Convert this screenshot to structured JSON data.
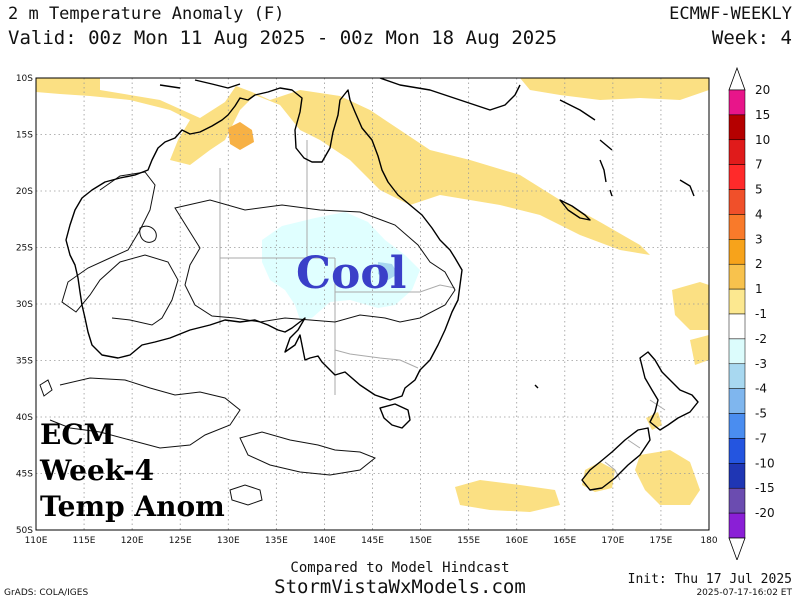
{
  "header": {
    "title": "2 m Temperature Anomaly (F)",
    "valid": "Valid: 00z Mon 11 Aug 2025 - 00z Mon 18 Aug 2025",
    "model": "ECMWF-WEEKLY",
    "week": "Week: 4"
  },
  "map": {
    "region": "Australia / New Zealand",
    "lon_range": [
      110,
      180
    ],
    "lat_range": [
      -50,
      -10
    ],
    "lon_ticks": [
      "110E",
      "115E",
      "120E",
      "125E",
      "130E",
      "135E",
      "140E",
      "145E",
      "150E",
      "155E",
      "160E",
      "165E",
      "170E",
      "175E",
      "180"
    ],
    "lat_ticks": [
      "10S",
      "15S",
      "20S",
      "25S",
      "30S",
      "35S",
      "40S",
      "45S",
      "50S"
    ],
    "annotation_cool": "Cool",
    "annotation_overlay": [
      "ECM",
      "Week-4",
      "Temp Anom"
    ],
    "colors": {
      "warm_1_2": "#fbe083",
      "warm_2_3": "#f7b145",
      "cool_m1_m2": "#e0ffff",
      "cool_m2_m3": "#a8d8f0",
      "cool_m3_m4": "#7fb6ee",
      "cool_text": "#3a3fc8"
    }
  },
  "colorbar": {
    "labels": [
      "20",
      "15",
      "10",
      "7",
      "5",
      "4",
      "3",
      "2",
      "1",
      "-1",
      "-2",
      "-3",
      "-4",
      "-5",
      "-7",
      "-10",
      "-15",
      "-20"
    ],
    "colors": [
      "#e8158a",
      "#b50000",
      "#e01b1b",
      "#ff2a2a",
      "#f0502a",
      "#f97a2a",
      "#f7a31b",
      "#f8c24d",
      "#fce890",
      "#ffffff",
      "#dcfcfc",
      "#a8d8f0",
      "#7fb6ee",
      "#4a8df0",
      "#2455e0",
      "#1f36b4",
      "#6b4cb0",
      "#8a1fd6"
    ]
  },
  "footer": {
    "compared": "Compared to Model Hindcast",
    "site": "StormVistaWxModels.com",
    "grads": "GrADS: COLA/IGES",
    "init": "Init: Thu 17 Jul 2025",
    "stamp": "2025-07-17-16:02 ET"
  }
}
